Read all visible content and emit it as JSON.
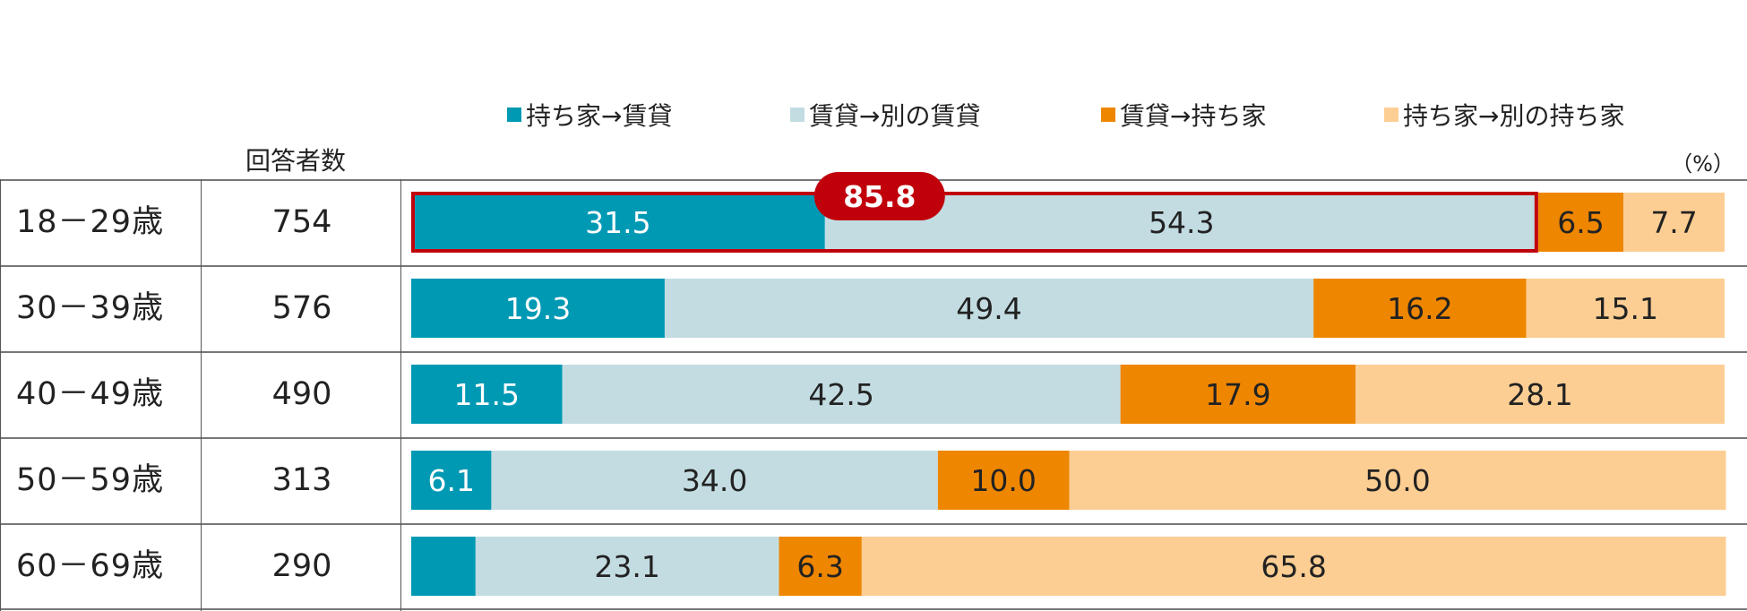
{
  "legend": [
    {
      "label": "持ち家→賃貸",
      "color": "#0099B4"
    },
    {
      "label": "賃貸→別の賃貸",
      "color": "#C3DCE2"
    },
    {
      "label": "賃貸→持ち家",
      "color": "#EE8600"
    },
    {
      "label": "持ち家→別の持ち家",
      "color": "#FDCE93"
    }
  ],
  "table": {
    "respondents_header": "回答者数",
    "unit": "（%）",
    "rows": [
      {
        "age": "18－29歳",
        "respondents": "754"
      },
      {
        "age": "30－39歳",
        "respondents": "576"
      },
      {
        "age": "40－49歳",
        "respondents": "490"
      },
      {
        "age": "50－59歳",
        "respondents": "313"
      },
      {
        "age": "60－69歳",
        "respondents": "290"
      }
    ]
  },
  "chart_data": {
    "type": "bar",
    "orientation": "horizontal",
    "stacked": true,
    "categories": [
      "18－29歳",
      "30－39歳",
      "40－49歳",
      "50－59歳",
      "60－69歳"
    ],
    "series": [
      {
        "name": "持ち家→賃貸",
        "color": "#0099B4",
        "label_color": "#ffffff",
        "values": [
          31.5,
          19.3,
          11.5,
          6.1,
          4.9
        ],
        "labels": [
          "31.5",
          "19.3",
          "11.5",
          "6.1",
          ""
        ]
      },
      {
        "name": "賃貸→別の賃貸",
        "color": "#C3DCE2",
        "label_color": "#222222",
        "values": [
          54.3,
          49.4,
          42.5,
          34.0,
          23.1
        ],
        "labels": [
          "54.3",
          "49.4",
          "42.5",
          "34.0",
          "23.1"
        ]
      },
      {
        "name": "賃貸→持ち家",
        "color": "#EE8600",
        "label_color": "#222222",
        "values": [
          6.5,
          16.2,
          17.9,
          10.0,
          6.3
        ],
        "labels": [
          "6.5",
          "16.2",
          "17.9",
          "10.0",
          "6.3"
        ]
      },
      {
        "name": "持ち家→別の持ち家",
        "color": "#FDCE93",
        "label_color": "#222222",
        "values": [
          7.7,
          15.1,
          28.1,
          50.0,
          65.8
        ],
        "labels": [
          "7.7",
          "15.1",
          "28.1",
          "50.0",
          "65.8"
        ]
      }
    ],
    "xlim": [
      0,
      100
    ],
    "highlight": {
      "row": 0,
      "series": [
        0,
        1
      ],
      "label": "85.8",
      "color": "#C0000B"
    }
  }
}
